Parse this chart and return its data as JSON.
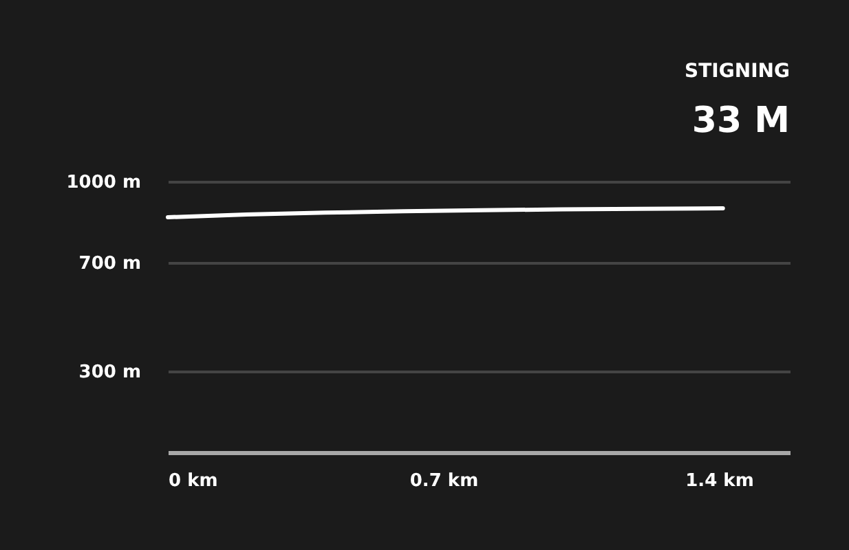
{
  "chart_data": {
    "type": "line",
    "x": [
      0,
      0.2,
      0.4,
      0.6,
      0.8,
      1.0,
      1.2,
      1.41
    ],
    "series": [
      {
        "color": "#ffffff",
        "values": [
          868,
          878,
          885,
          890,
          894,
          897,
          899,
          901
        ]
      }
    ],
    "xlim": [
      0,
      1.58
    ],
    "ylim": [
      0,
      1000
    ],
    "xticks": [
      {
        "value": 0,
        "label": "0 km"
      },
      {
        "value": 0.7,
        "label": "0.7 km"
      },
      {
        "value": 1.4,
        "label": "1.4 km"
      }
    ],
    "yticks": [
      {
        "value": 300,
        "label": "300 m"
      },
      {
        "value": 700,
        "label": "700 m"
      },
      {
        "value": 1000,
        "label": "1000 m"
      }
    ],
    "grid": "y",
    "legend": false,
    "marker": "none",
    "line_style": "solid",
    "annotations": [
      "STIGNING",
      "33 M"
    ]
  }
}
